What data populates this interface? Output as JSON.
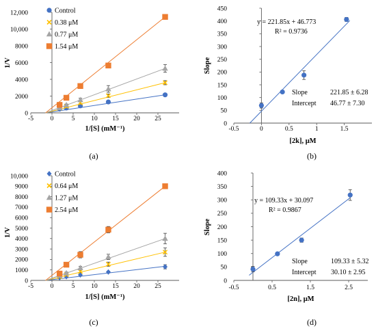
{
  "chart_data": [
    {
      "id": "a",
      "type": "scatter",
      "caption": "(a)",
      "xlabel": "1/[S] (mM⁻¹)",
      "ylabel": "1/V",
      "xlim": [
        -5,
        30
      ],
      "ylim": [
        0,
        12000
      ],
      "xticks": [
        -5,
        0,
        5,
        10,
        15,
        20,
        25
      ],
      "yticks": [
        0,
        2000,
        4000,
        6000,
        8000,
        10000,
        12000
      ],
      "ytick_labels": [
        "0",
        "2000",
        "4000",
        "6000",
        "8000",
        "10,000",
        "12,000"
      ],
      "legend_position": "top-left",
      "grid": false,
      "series": [
        {
          "name": "Control",
          "marker": "circle",
          "color": "#4472C4",
          "x": [
            1.8,
            3.4,
            6.7,
            13.3,
            26.7
          ],
          "y": [
            450,
            580,
            830,
            1300,
            2150
          ],
          "err": [
            60,
            60,
            80,
            120,
            100
          ],
          "fit": [
            [
              -1.5,
              0
            ],
            [
              26.7,
              2150
            ]
          ]
        },
        {
          "name": "0.38 μM",
          "marker": "x",
          "color": "#FFC000",
          "x": [
            1.8,
            3.4,
            6.7,
            13.3,
            26.7
          ],
          "y": [
            560,
            780,
            1200,
            2050,
            3600
          ],
          "err": [
            60,
            80,
            100,
            200,
            250
          ],
          "fit": [
            [
              -1.5,
              0
            ],
            [
              26.7,
              3600
            ]
          ]
        },
        {
          "name": "0.77 μM",
          "marker": "triangle",
          "color": "#A5A5A5",
          "x": [
            1.8,
            3.4,
            6.7,
            13.3,
            26.7
          ],
          "y": [
            600,
            950,
            1550,
            2850,
            5300
          ],
          "err": [
            80,
            100,
            200,
            400,
            450
          ],
          "fit": [
            [
              -1.5,
              0
            ],
            [
              26.7,
              5300
            ]
          ]
        },
        {
          "name": "1.54 μM",
          "marker": "square",
          "color": "#ED7D31",
          "x": [
            1.8,
            3.4,
            6.7,
            13.3,
            26.7
          ],
          "y": [
            950,
            1800,
            3200,
            5650,
            11450
          ],
          "err": [
            100,
            200,
            250,
            150,
            150
          ],
          "fit": [
            [
              -1.5,
              0
            ],
            [
              26.7,
              11450
            ]
          ]
        }
      ]
    },
    {
      "id": "b",
      "type": "scatter",
      "caption": "(b)",
      "xlabel": "[2k], μM",
      "ylabel": "Slope",
      "xlim": [
        -0.5,
        2
      ],
      "ylim": [
        0,
        450
      ],
      "xticks": [
        -0.5,
        0,
        0.5,
        1,
        1.5
      ],
      "yticks": [
        0,
        50,
        100,
        150,
        200,
        250,
        300,
        350,
        400,
        450
      ],
      "grid": false,
      "series": [
        {
          "name": "",
          "marker": "circle",
          "color": "#4472C4",
          "x": [
            0,
            0.38,
            0.77,
            1.54
          ],
          "y": [
            69,
            122,
            188,
            406
          ],
          "err": [
            10,
            5,
            17,
            8
          ],
          "fit": [
            [
              -0.21,
              0
            ],
            [
              1.6,
              401.7
            ]
          ]
        }
      ],
      "equation": "y = 221.85x + 46.773",
      "r2": "R² = 0.9736",
      "slope_label": "Slope",
      "slope_value": "221.85 ± 6.28",
      "intercept_label": "Intercept",
      "intercept_value": "46.77 ± 7.30"
    },
    {
      "id": "c",
      "type": "scatter",
      "caption": "(c)",
      "xlabel": "1/[S] (mM⁻¹)",
      "ylabel": "1/V",
      "xlim": [
        -5,
        30
      ],
      "ylim": [
        0,
        10000
      ],
      "xticks": [
        -5,
        0,
        5,
        10,
        15,
        20,
        25
      ],
      "yticks": [
        0,
        1000,
        2000,
        3000,
        4000,
        5000,
        6000,
        7000,
        8000,
        9000,
        10000
      ],
      "ytick_labels": [
        "0",
        "1000",
        "2000",
        "3000",
        "4000",
        "5000",
        "6000",
        "7000",
        "8000",
        "9000",
        "10,000"
      ],
      "legend_position": "top-left",
      "grid": false,
      "series": [
        {
          "name": "Control",
          "marker": "diamond",
          "color": "#4472C4",
          "x": [
            1.8,
            3.4,
            6.7,
            13.3,
            26.7
          ],
          "y": [
            250,
            350,
            520,
            800,
            1300
          ],
          "err": [
            40,
            50,
            60,
            80,
            200
          ],
          "fit": [
            [
              -1.5,
              0
            ],
            [
              26.7,
              1350
            ]
          ]
        },
        {
          "name": "0.64 μM",
          "marker": "x",
          "color": "#FFC000",
          "x": [
            1.8,
            3.4,
            6.7,
            13.3,
            26.7
          ],
          "y": [
            350,
            550,
            850,
            1550,
            2700
          ],
          "err": [
            50,
            80,
            100,
            200,
            400
          ],
          "fit": [
            [
              -1.5,
              0
            ],
            [
              26.7,
              2700
            ]
          ]
        },
        {
          "name": "1.27 μM",
          "marker": "triangle",
          "color": "#A5A5A5",
          "x": [
            1.8,
            3.4,
            6.7,
            13.3,
            26.7
          ],
          "y": [
            480,
            700,
            1200,
            2250,
            4000
          ],
          "err": [
            60,
            100,
            150,
            250,
            500
          ],
          "fit": [
            [
              -1.5,
              0
            ],
            [
              26.7,
              4000
            ]
          ]
        },
        {
          "name": "2.54 μM",
          "marker": "square",
          "color": "#ED7D31",
          "x": [
            1.8,
            3.4,
            6.7,
            13.3,
            26.7
          ],
          "y": [
            650,
            1500,
            2450,
            4850,
            9000
          ],
          "err": [
            100,
            100,
            300,
            300,
            100
          ],
          "fit": [
            [
              -1.5,
              0
            ],
            [
              26.7,
              9000
            ]
          ]
        }
      ]
    },
    {
      "id": "d",
      "type": "scatter",
      "caption": "(d)",
      "xlabel": "[2n], μM",
      "ylabel": "Slope",
      "xlim": [
        -0.5,
        3
      ],
      "ylim": [
        0,
        400
      ],
      "xticks": [
        -0.5,
        0.5,
        1.5,
        2.5
      ],
      "yticks": [
        0,
        50,
        100,
        150,
        200,
        250,
        300,
        350,
        400
      ],
      "grid": false,
      "series": [
        {
          "name": "",
          "marker": "circle",
          "color": "#4472C4",
          "x": [
            0,
            0.64,
            1.27,
            2.54
          ],
          "y": [
            42,
            99,
            150,
            318
          ],
          "err": [
            10,
            4,
            8,
            20
          ],
          "fit": [
            [
              -0.1,
              19.2
            ],
            [
              2.54,
              307.8
            ]
          ]
        }
      ],
      "equation": "y = 109.33x + 30.097",
      "r2": "R² = 0.9867",
      "slope_label": "Slope",
      "slope_value": "109.33 ± 5.32",
      "intercept_label": "Intercept",
      "intercept_value": "30.10 ± 2.95"
    }
  ]
}
